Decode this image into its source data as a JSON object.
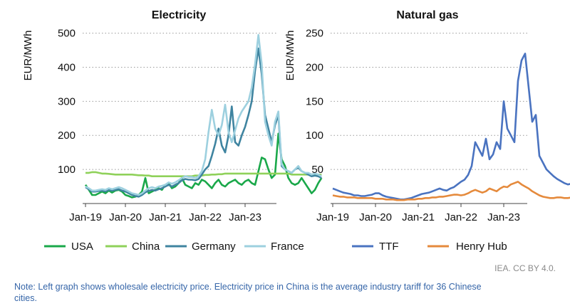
{
  "chart_data": [
    {
      "type": "line",
      "title": "Electricity",
      "xlabel": "",
      "ylabel": "EUR/MWh",
      "ylim": [
        0,
        520
      ],
      "yticks": [
        100,
        200,
        300,
        400,
        500
      ],
      "grid": true,
      "x_tick_labels": [
        "Jan-19",
        "Jan-20",
        "Jan-21",
        "Jan-22",
        "Jan-23"
      ],
      "x_start": "Jan-2019",
      "series": [
        {
          "name": "USA",
          "color": "#1aa84a",
          "values": [
            55,
            40,
            25,
            25,
            30,
            35,
            30,
            38,
            32,
            38,
            40,
            35,
            25,
            22,
            18,
            20,
            25,
            35,
            75,
            30,
            35,
            40,
            45,
            40,
            55,
            60,
            45,
            50,
            60,
            75,
            55,
            50,
            45,
            60,
            55,
            70,
            65,
            55,
            45,
            60,
            70,
            55,
            50,
            60,
            65,
            70,
            60,
            55,
            65,
            70,
            60,
            55,
            95,
            135,
            130,
            100,
            75,
            85,
            205,
            130,
            110,
            75,
            60,
            55,
            60,
            75,
            60,
            45,
            30,
            40,
            60,
            75
          ]
        },
        {
          "name": "China",
          "color": "#8fd15a",
          "values": [
            90,
            90,
            92,
            92,
            90,
            88,
            88,
            87,
            86,
            85,
            85,
            85,
            85,
            85,
            85,
            84,
            83,
            83,
            82,
            82,
            80,
            80,
            80,
            80,
            80,
            80,
            80,
            80,
            80,
            80,
            80,
            80,
            80,
            82,
            82,
            82,
            84,
            84,
            85,
            85,
            86,
            86,
            88,
            88,
            88,
            88,
            88,
            88,
            88,
            88,
            88,
            88,
            88,
            88,
            88,
            88,
            88,
            88,
            88,
            88,
            88,
            88,
            85,
            85,
            85,
            85,
            85,
            85,
            85,
            85,
            85,
            85
          ]
        },
        {
          "name": "Germany",
          "color": "#3f84a0",
          "values": [
            48,
            42,
            35,
            35,
            37,
            38,
            36,
            40,
            38,
            40,
            42,
            38,
            35,
            30,
            25,
            22,
            20,
            25,
            33,
            37,
            40,
            38,
            42,
            45,
            50,
            55,
            50,
            55,
            60,
            68,
            72,
            70,
            70,
            68,
            72,
            85,
            100,
            110,
            140,
            175,
            220,
            170,
            150,
            200,
            285,
            180,
            170,
            200,
            225,
            260,
            300,
            390,
            455,
            380,
            260,
            220,
            180,
            230,
            260,
            110,
            100,
            95,
            90,
            100,
            105,
            95,
            90,
            85,
            80,
            82,
            80,
            75
          ]
        },
        {
          "name": "France",
          "color": "#9dd0df",
          "values": [
            50,
            45,
            38,
            38,
            40,
            42,
            40,
            45,
            42,
            45,
            48,
            45,
            40,
            35,
            30,
            28,
            25,
            30,
            38,
            45,
            48,
            45,
            50,
            52,
            55,
            62,
            58,
            62,
            68,
            75,
            80,
            78,
            78,
            75,
            80,
            95,
            130,
            210,
            275,
            220,
            200,
            230,
            290,
            210,
            180,
            215,
            250,
            270,
            285,
            300,
            340,
            410,
            495,
            410,
            240,
            200,
            170,
            240,
            270,
            115,
            100,
            95,
            90,
            100,
            110,
            95,
            90,
            90,
            85,
            88,
            85,
            80
          ]
        }
      ],
      "legend_position": "bottom"
    },
    {
      "type": "line",
      "title": "Natural gas",
      "xlabel": "",
      "ylabel": "EUR/MWh",
      "ylim": [
        0,
        260
      ],
      "yticks": [
        50,
        100,
        150,
        200,
        250
      ],
      "grid": true,
      "x_tick_labels": [
        "Jan-19",
        "Jan-20",
        "Jan-21",
        "Jan-22",
        "Jan-23"
      ],
      "x_start": "Jan-2019",
      "series": [
        {
          "name": "TTF",
          "color": "#4a73c0",
          "values": [
            22,
            20,
            18,
            16,
            15,
            14,
            12,
            12,
            11,
            11,
            12,
            13,
            15,
            15,
            12,
            10,
            9,
            8,
            7,
            6,
            6,
            7,
            8,
            10,
            12,
            14,
            15,
            16,
            18,
            20,
            22,
            20,
            19,
            22,
            24,
            28,
            32,
            35,
            42,
            55,
            90,
            80,
            70,
            95,
            65,
            72,
            90,
            80,
            150,
            110,
            100,
            90,
            180,
            210,
            220,
            170,
            120,
            130,
            70,
            60,
            50,
            45,
            40,
            36,
            33,
            30,
            28,
            29,
            31,
            32,
            30,
            30
          ]
        },
        {
          "name": "Henry Hub",
          "color": "#e58a3c",
          "values": [
            12,
            11,
            10,
            10,
            9,
            9,
            9,
            8,
            8,
            8,
            8,
            8,
            7,
            7,
            7,
            6,
            6,
            6,
            5,
            5,
            5,
            6,
            6,
            6,
            7,
            7,
            8,
            8,
            9,
            9,
            10,
            10,
            11,
            12,
            13,
            13,
            12,
            13,
            15,
            18,
            20,
            18,
            16,
            18,
            22,
            20,
            18,
            22,
            25,
            24,
            28,
            30,
            32,
            28,
            25,
            22,
            18,
            15,
            12,
            10,
            9,
            8,
            8,
            9,
            9,
            8,
            8,
            9,
            9,
            9,
            9,
            9
          ]
        }
      ],
      "legend_position": "bottom"
    }
  ],
  "credit": "IEA. CC BY 4.0.",
  "note_line1": "Note: Left graph shows wholesale electricity price. Electricity price in China is the average industry tariff for 36 Chinese",
  "note_line2": "cities."
}
